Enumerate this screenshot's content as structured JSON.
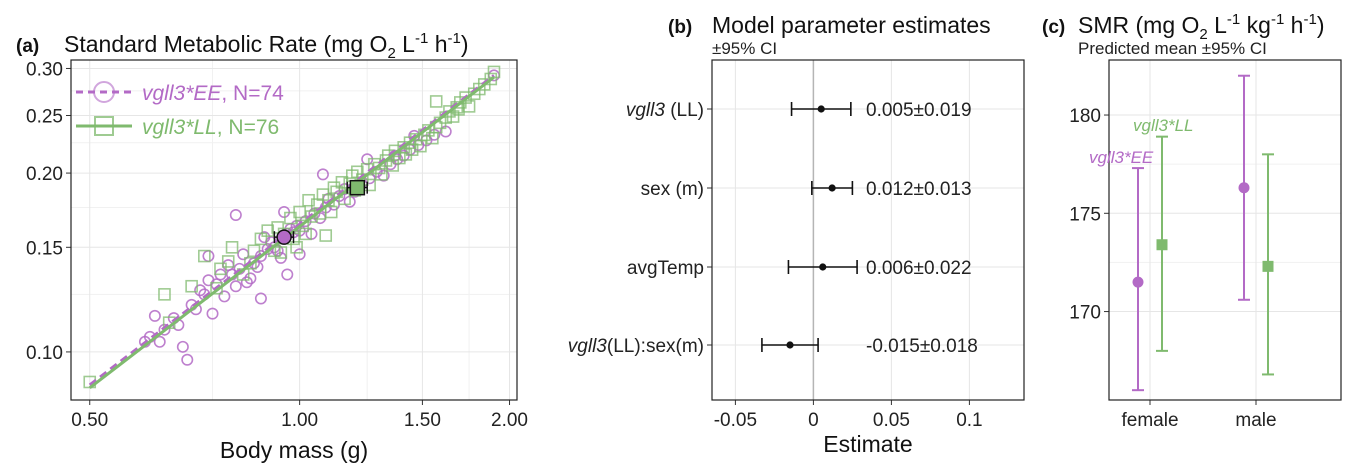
{
  "colors": {
    "EE": "#b36ac6",
    "LL": "#7fba6e",
    "black": "#111111",
    "zeroLine": "#b5b5b5"
  },
  "panel_a": {
    "tag": "(a)",
    "title_main": "Standard Metabolic Rate (mg O",
    "title_sub2": "2",
    "title_L": " L",
    "title_sup1": "-1",
    "title_h": " h",
    "title_sup2": "-1",
    "title_close": ")",
    "xlabel": "Body mass (g)",
    "legend": [
      {
        "id": "EE",
        "name": "vgll3*EE",
        "n": ", N=74"
      },
      {
        "id": "LL",
        "name": "vgll3*LL",
        "n": ", N=76"
      }
    ]
  },
  "panel_b": {
    "tag": "(b)",
    "title": "Model parameter estimates",
    "subtitle": "±95% CI",
    "xlabel": "Estimate"
  },
  "panel_c": {
    "tag": "(c)",
    "title_main": "SMR (mg O",
    "title_sub2": "2",
    "title_L": " L",
    "title_sup1": "-1",
    "title_kg": " kg",
    "title_sup2": "-1",
    "title_h": " h",
    "title_sup3": "-1",
    "title_close": ")",
    "subtitle": "Predicted mean ±95% CI",
    "annot_EE": "vgll3*EE",
    "annot_LL": "vgll3*LL"
  },
  "chart_data": [
    {
      "type": "scatter",
      "x_scale": "log",
      "y_scale": "log",
      "xlim": [
        0.47,
        2.05
      ],
      "ylim": [
        0.083,
        0.31
      ],
      "x_ticks": [
        0.5,
        1.0,
        1.5,
        2.0
      ],
      "x_tick_labels": [
        "0.50",
        "1.00",
        "1.50",
        "2.00"
      ],
      "y_ticks": [
        0.1,
        0.15,
        0.2,
        0.25,
        0.3
      ],
      "y_tick_labels": [
        "0.10",
        "0.15",
        "0.20",
        "0.25",
        "0.30"
      ],
      "grid": true,
      "legend_position": "top-left",
      "series": [
        {
          "name": "vgll3*EE",
          "marker": "circle",
          "points": [
            [
              0.6,
              0.104
            ],
            [
              0.61,
              0.106
            ],
            [
              0.63,
              0.104
            ],
            [
              0.64,
              0.109
            ],
            [
              0.66,
              0.114
            ],
            [
              0.67,
              0.111
            ],
            [
              0.68,
              0.102
            ],
            [
              0.69,
              0.097
            ],
            [
              0.7,
              0.12
            ],
            [
              0.71,
              0.118
            ],
            [
              0.72,
              0.127
            ],
            [
              0.73,
              0.125
            ],
            [
              0.74,
              0.132
            ],
            [
              0.75,
              0.116
            ],
            [
              0.76,
              0.13
            ],
            [
              0.77,
              0.135
            ],
            [
              0.78,
              0.124
            ],
            [
              0.79,
              0.14
            ],
            [
              0.8,
              0.135
            ],
            [
              0.81,
              0.129
            ],
            [
              0.82,
              0.138
            ],
            [
              0.83,
              0.146
            ],
            [
              0.84,
              0.131
            ],
            [
              0.85,
              0.133
            ],
            [
              0.86,
              0.141
            ],
            [
              0.87,
              0.139
            ],
            [
              0.88,
              0.145
            ],
            [
              0.89,
              0.156
            ],
            [
              0.9,
              0.149
            ],
            [
              0.91,
              0.153
            ],
            [
              0.92,
              0.15
            ],
            [
              0.93,
              0.148
            ],
            [
              0.94,
              0.144
            ],
            [
              0.95,
              0.155
            ],
            [
              0.96,
              0.158
            ],
            [
              0.97,
              0.161
            ],
            [
              0.98,
              0.159
            ],
            [
              0.99,
              0.163
            ],
            [
              1.0,
              0.16
            ],
            [
              1.02,
              0.166
            ],
            [
              1.04,
              0.158
            ],
            [
              1.05,
              0.171
            ],
            [
              1.07,
              0.168
            ],
            [
              1.09,
              0.175
            ],
            [
              1.1,
              0.181
            ],
            [
              1.12,
              0.177
            ],
            [
              1.14,
              0.183
            ],
            [
              1.16,
              0.188
            ],
            [
              1.18,
              0.179
            ],
            [
              1.2,
              0.186
            ],
            [
              1.23,
              0.193
            ],
            [
              1.26,
              0.196
            ],
            [
              1.29,
              0.201
            ],
            [
              1.32,
              0.198
            ],
            [
              1.35,
              0.207
            ],
            [
              1.38,
              0.211
            ],
            [
              1.41,
              0.214
            ],
            [
              1.44,
              0.219
            ],
            [
              1.48,
              0.223
            ],
            [
              1.52,
              0.227
            ],
            [
              1.56,
              0.232
            ],
            [
              1.62,
              0.235
            ],
            [
              1.9,
              0.292
            ],
            [
              0.81,
              0.17
            ],
            [
              0.96,
              0.135
            ],
            [
              1.08,
              0.199
            ],
            [
              1.0,
              0.146
            ],
            [
              0.88,
              0.123
            ],
            [
              0.62,
              0.115
            ],
            [
              1.25,
              0.211
            ],
            [
              0.74,
              0.145
            ],
            [
              0.95,
              0.172
            ],
            [
              1.37,
              0.214
            ],
            [
              1.46,
              0.231
            ]
          ]
        },
        {
          "name": "vgll3*LL",
          "marker": "square",
          "points": [
            [
              0.5,
              0.089
            ],
            [
              0.64,
              0.125
            ],
            [
              0.65,
              0.112
            ],
            [
              0.7,
              0.129
            ],
            [
              0.73,
              0.145
            ],
            [
              0.76,
              0.128
            ],
            [
              0.77,
              0.138
            ],
            [
              0.79,
              0.142
            ],
            [
              0.8,
              0.15
            ],
            [
              0.83,
              0.135
            ],
            [
              0.85,
              0.141
            ],
            [
              0.86,
              0.148
            ],
            [
              0.88,
              0.155
            ],
            [
              0.9,
              0.16
            ],
            [
              0.92,
              0.148
            ],
            [
              0.93,
              0.162
            ],
            [
              0.95,
              0.158
            ],
            [
              0.97,
              0.168
            ],
            [
              0.98,
              0.155
            ],
            [
              1.0,
              0.172
            ],
            [
              1.01,
              0.163
            ],
            [
              1.03,
              0.18
            ],
            [
              1.04,
              0.169
            ],
            [
              1.06,
              0.177
            ],
            [
              1.07,
              0.171
            ],
            [
              1.08,
              0.184
            ],
            [
              1.1,
              0.18
            ],
            [
              1.11,
              0.172
            ],
            [
              1.12,
              0.189
            ],
            [
              1.13,
              0.186
            ],
            [
              1.15,
              0.193
            ],
            [
              1.16,
              0.181
            ],
            [
              1.18,
              0.192
            ],
            [
              1.19,
              0.198
            ],
            [
              1.2,
              0.187
            ],
            [
              1.21,
              0.201
            ],
            [
              1.23,
              0.195
            ],
            [
              1.25,
              0.203
            ],
            [
              1.26,
              0.191
            ],
            [
              1.28,
              0.207
            ],
            [
              1.3,
              0.204
            ],
            [
              1.31,
              0.199
            ],
            [
              1.33,
              0.21
            ],
            [
              1.34,
              0.214
            ],
            [
              1.36,
              0.206
            ],
            [
              1.37,
              0.218
            ],
            [
              1.39,
              0.212
            ],
            [
              1.41,
              0.221
            ],
            [
              1.42,
              0.215
            ],
            [
              1.44,
              0.225
            ],
            [
              1.45,
              0.219
            ],
            [
              1.47,
              0.228
            ],
            [
              1.49,
              0.222
            ],
            [
              1.51,
              0.232
            ],
            [
              1.53,
              0.236
            ],
            [
              1.55,
              0.229
            ],
            [
              1.57,
              0.239
            ],
            [
              1.59,
              0.243
            ],
            [
              1.62,
              0.248
            ],
            [
              1.64,
              0.254
            ],
            [
              1.66,
              0.249
            ],
            [
              1.68,
              0.258
            ],
            [
              1.7,
              0.263
            ],
            [
              1.73,
              0.268
            ],
            [
              1.75,
              0.259
            ],
            [
              1.78,
              0.272
            ],
            [
              1.81,
              0.277
            ],
            [
              1.84,
              0.282
            ],
            [
              1.88,
              0.288
            ],
            [
              1.9,
              0.296
            ],
            [
              0.99,
              0.15
            ],
            [
              1.09,
              0.157
            ],
            [
              1.02,
              0.158
            ],
            [
              0.94,
              0.147
            ],
            [
              1.57,
              0.264
            ],
            [
              1.69,
              0.256
            ]
          ]
        }
      ],
      "fit_lines": [
        {
          "series": "vgll3*EE",
          "style": "dashed",
          "x": [
            0.5,
            1.9
          ],
          "y": [
            0.088,
            0.292
          ]
        },
        {
          "series": "vgll3*LL",
          "style": "solid",
          "x": [
            0.5,
            1.9
          ],
          "y": [
            0.087,
            0.29
          ]
        }
      ],
      "group_means": [
        {
          "series": "vgll3*EE",
          "marker": "circle",
          "x": 0.95,
          "y": 0.156,
          "x_err": 0.03
        },
        {
          "series": "vgll3*LL",
          "marker": "square",
          "x": 1.21,
          "y": 0.189,
          "x_err": 0.04
        }
      ]
    },
    {
      "type": "forest",
      "xlabel": "Estimate",
      "xlim": [
        -0.065,
        0.135
      ],
      "x_ticks": [
        -0.05,
        0,
        0.05,
        0.1
      ],
      "x_tick_labels": [
        "-0.05",
        "0",
        "0.05",
        "0.1"
      ],
      "reference_line": 0,
      "rows": [
        {
          "label_italic": "vgll3",
          "label_rest": " (LL)",
          "estimate": 0.005,
          "ci": [
            -0.014,
            0.024
          ],
          "text": "0.005±0.019"
        },
        {
          "label_italic": "",
          "label_rest": "sex (m)",
          "estimate": 0.012,
          "ci": [
            -0.001,
            0.025
          ],
          "text": "0.012±0.013"
        },
        {
          "label_italic": "",
          "label_rest": "avgTemp",
          "estimate": 0.006,
          "ci": [
            -0.016,
            0.028
          ],
          "text": "0.006±0.022"
        },
        {
          "label_italic": "vgll3",
          "label_rest": "(LL):sex(m)",
          "estimate": -0.015,
          "ci": [
            -0.033,
            0.003
          ],
          "text": "-0.015±0.018"
        }
      ]
    },
    {
      "type": "dot_errorbar",
      "categories": [
        "female",
        "male"
      ],
      "ylim": [
        165.5,
        182.8
      ],
      "y_ticks": [
        170,
        175,
        180
      ],
      "y_tick_labels": [
        "170",
        "175",
        "180"
      ],
      "grid": true,
      "series": [
        {
          "name": "vgll3*EE",
          "marker": "circle",
          "values": [
            171.5,
            176.3
          ],
          "lower": [
            166.0,
            170.6
          ],
          "upper": [
            177.3,
            182.0
          ]
        },
        {
          "name": "vgll3*LL",
          "marker": "square",
          "values": [
            173.4,
            172.3
          ],
          "lower": [
            168.0,
            166.8
          ],
          "upper": [
            178.9,
            178.0
          ]
        }
      ]
    }
  ]
}
